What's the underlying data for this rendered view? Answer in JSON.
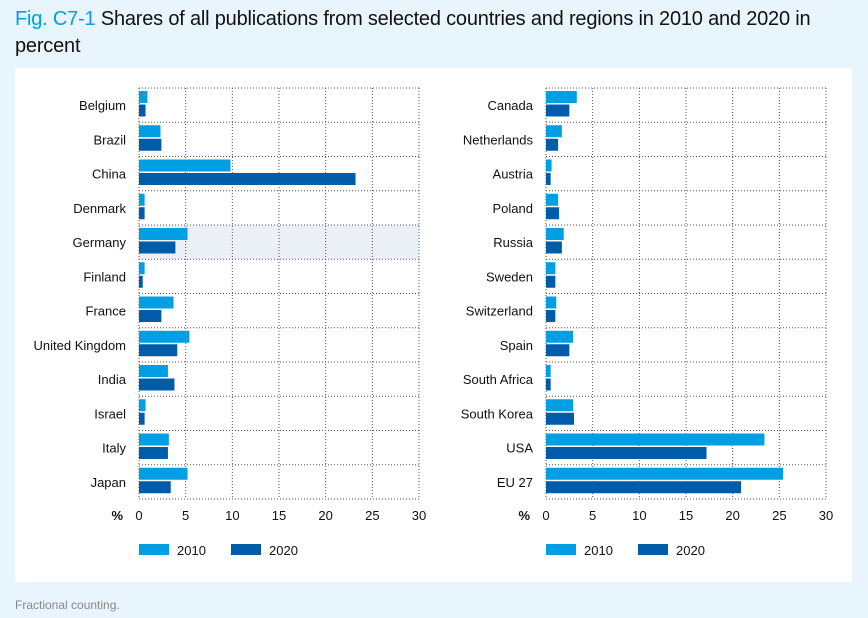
{
  "title": {
    "fig": "Fig. C7-1",
    "text": "Shares of all publications from selected countries and regions in 2010 and 2020 in percent"
  },
  "footnote": "Fractional counting.",
  "colors": {
    "2010": "#009fe3",
    "2020": "#005ca9",
    "highlight": "#eaf0f6"
  },
  "chart_data": [
    {
      "type": "bar",
      "orientation": "horizontal",
      "categories": [
        "Belgium",
        "Brazil",
        "China",
        "Denmark",
        "Germany",
        "Finland",
        "France",
        "United Kingdom",
        "India",
        "Israel",
        "Italy",
        "Japan"
      ],
      "highlight": "Germany",
      "series": [
        {
          "name": "2010",
          "values": [
            0.9,
            2.3,
            9.8,
            0.6,
            5.2,
            0.6,
            3.7,
            5.4,
            3.1,
            0.7,
            3.2,
            5.2
          ]
        },
        {
          "name": "2020",
          "values": [
            0.7,
            2.4,
            23.2,
            0.6,
            3.9,
            0.4,
            2.4,
            4.1,
            3.8,
            0.6,
            3.1,
            3.4
          ]
        }
      ],
      "xlabel": "%",
      "xlim": [
        0,
        30
      ],
      "xticks": [
        "0",
        "5",
        "10",
        "15",
        "20",
        "25",
        "30"
      ],
      "grid": true,
      "legend": "bottom-left"
    },
    {
      "type": "bar",
      "orientation": "horizontal",
      "categories": [
        "Canada",
        "Netherlands",
        "Austria",
        "Poland",
        "Russia",
        "Sweden",
        "Switzerland",
        "Spain",
        "South Africa",
        "South Korea",
        "USA",
        "EU 27"
      ],
      "series": [
        {
          "name": "2010",
          "values": [
            3.3,
            1.7,
            0.6,
            1.3,
            1.9,
            1.0,
            1.1,
            2.9,
            0.5,
            2.9,
            23.4,
            25.4
          ]
        },
        {
          "name": "2020",
          "values": [
            2.5,
            1.3,
            0.5,
            1.4,
            1.7,
            1.0,
            1.0,
            2.5,
            0.5,
            3.0,
            17.2,
            20.9
          ]
        }
      ],
      "xlabel": "%",
      "xlim": [
        0,
        30
      ],
      "xticks": [
        "0",
        "5",
        "10",
        "15",
        "20",
        "25",
        "30"
      ],
      "grid": true,
      "legend": "bottom-left"
    }
  ]
}
